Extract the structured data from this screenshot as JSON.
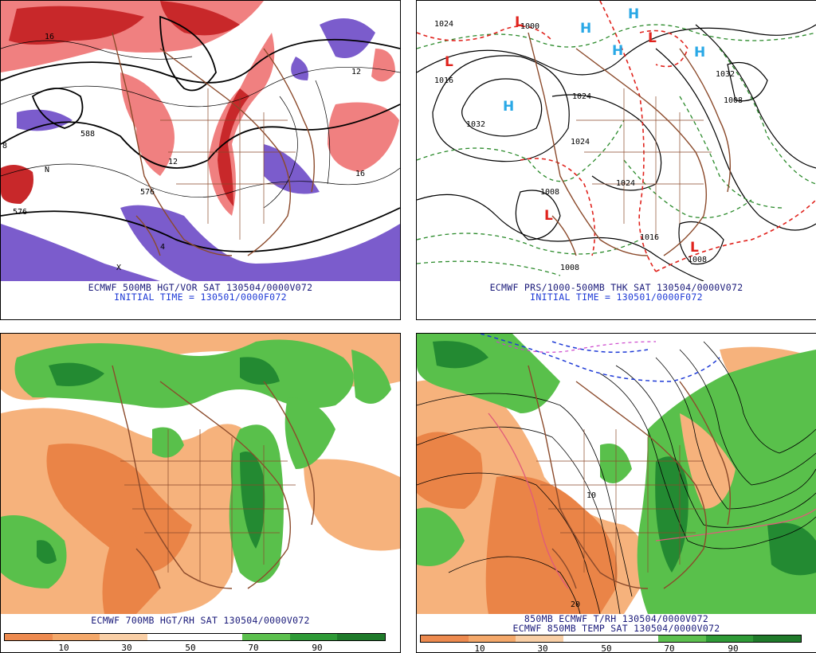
{
  "panels": {
    "p500": {
      "caption1": "ECMWF 500MB HGT/VOR SAT 130504/0000V072",
      "caption2": "INITIAL TIME = 130501/0000F072",
      "labels": [
        "16",
        "12",
        "8",
        "576",
        "588",
        "576",
        "4",
        "X",
        "N",
        "12",
        "16"
      ]
    },
    "prs": {
      "caption1": "ECMWF PRS/1000-500MB THK SAT 130504/0000V072",
      "caption2": "INITIAL TIME = 130501/0000F072",
      "highs": [
        "H",
        "H",
        "H",
        "H",
        "H"
      ],
      "lows": [
        "L",
        "L",
        "L",
        "L",
        "L"
      ],
      "isobars": [
        "1024",
        "1000",
        "1016",
        "1032",
        "1024",
        "1024",
        "1032",
        "1008",
        "1008",
        "1016",
        "1008",
        "1024",
        "1008"
      ]
    },
    "rh700": {
      "caption1": "ECMWF 700MB HGT/RH SAT 130504/0000V072",
      "colorbar": {
        "colors": [
          "#ed8a4f",
          "#f4a86a",
          "#f9cfa6",
          "#ffffff",
          "#ffffff",
          "#5cc04e",
          "#2e9a36",
          "#1f7a2a"
        ],
        "ticks": [
          "10",
          "30",
          "50",
          "70",
          "90"
        ]
      }
    },
    "t850": {
      "caption1": "850MB ECMWF T/RH 130504/0000V072",
      "caption2": "ECMWF 850MB TEMP SAT 130504/0000V072",
      "labels": [
        "20",
        "10"
      ],
      "colorbar": {
        "colors": [
          "#ed8a4f",
          "#f4a86a",
          "#f9cfa6",
          "#ffffff",
          "#ffffff",
          "#5cc04e",
          "#2e9a36",
          "#1f7a2a"
        ],
        "ticks": [
          "10",
          "30",
          "50",
          "70",
          "90"
        ]
      }
    }
  },
  "colors": {
    "vort_pos_dark": "#c8282a",
    "vort_pos_light": "#f08080",
    "vort_neg": "#7b5ccc",
    "rh_dry_dark": "#ea8447",
    "rh_dry_light": "#f6b27c",
    "rh_moist_light": "#59c04b",
    "rh_moist_dark": "#238a32",
    "coast": "#8b4a2b",
    "thickness_red": "#e0231d",
    "thickness_green": "#2a8a2a",
    "high_blue": "#29a8e6",
    "low_red": "#e0231d"
  }
}
